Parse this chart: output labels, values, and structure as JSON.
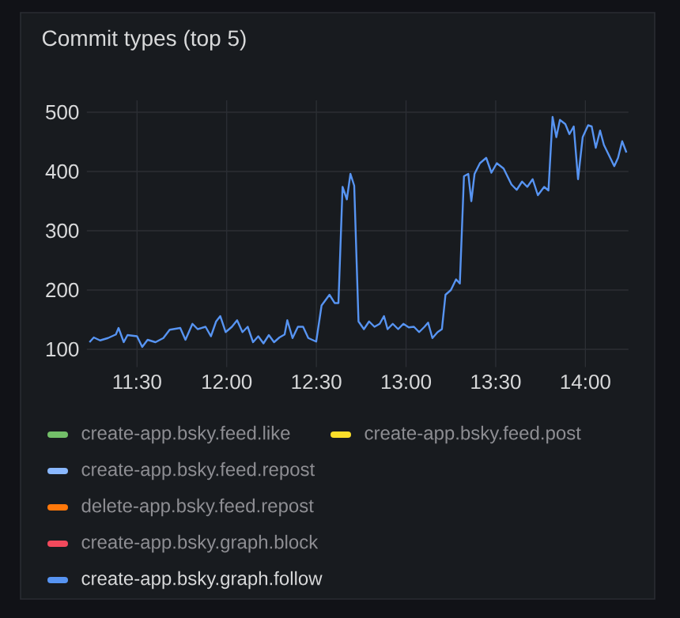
{
  "chart_data": {
    "type": "line",
    "title": "Commit types (top 5)",
    "x": [
      11.235,
      11.259,
      11.294,
      11.338,
      11.382,
      11.397,
      11.426,
      11.447,
      11.5,
      11.529,
      11.559,
      11.603,
      11.647,
      11.682,
      11.741,
      11.77,
      11.809,
      11.838,
      11.882,
      11.912,
      11.941,
      11.964,
      11.994,
      12.029,
      12.058,
      12.088,
      12.117,
      12.147,
      12.176,
      12.205,
      12.235,
      12.264,
      12.294,
      12.323,
      12.338,
      12.367,
      12.397,
      12.426,
      12.455,
      12.499,
      12.529,
      12.573,
      12.602,
      12.623,
      12.646,
      12.67,
      12.69,
      12.711,
      12.735,
      12.765,
      12.794,
      12.824,
      12.853,
      12.877,
      12.897,
      12.926,
      12.956,
      12.985,
      13.015,
      13.044,
      13.073,
      13.103,
      13.123,
      13.147,
      13.176,
      13.2,
      13.22,
      13.25,
      13.279,
      13.3,
      13.323,
      13.347,
      13.364,
      13.382,
      13.412,
      13.447,
      13.476,
      13.506,
      13.544,
      13.588,
      13.617,
      13.647,
      13.676,
      13.706,
      13.735,
      13.77,
      13.794,
      13.817,
      13.838,
      13.858,
      13.888,
      13.911,
      13.935,
      13.959,
      13.985,
      14.015,
      14.035,
      14.058,
      14.082,
      14.103,
      14.132,
      14.161,
      14.182,
      14.205,
      14.229
    ],
    "series": [
      {
        "name": "create-app.bsky.feed.like",
        "color": "#73bf69",
        "values": [
          null,
          null,
          null,
          null,
          null,
          null,
          null,
          null,
          null,
          null,
          null,
          null,
          null,
          null,
          null,
          null,
          null,
          null,
          null,
          null,
          null,
          null,
          null,
          null,
          null,
          null,
          null,
          null,
          null,
          null,
          null,
          null,
          null,
          null,
          null,
          null,
          null,
          null,
          null,
          null,
          null,
          null,
          null,
          null,
          null,
          null,
          null,
          null,
          null,
          null,
          null,
          null,
          null,
          null,
          null,
          null,
          null,
          null,
          null,
          null,
          null,
          null,
          null,
          null,
          null,
          null,
          null,
          null,
          null,
          null,
          null,
          null,
          null,
          null,
          null,
          null,
          null,
          null,
          null,
          null,
          null,
          null,
          null,
          null,
          null,
          null,
          null,
          null,
          null,
          null,
          null,
          null,
          null,
          null,
          null,
          null,
          null,
          null,
          null,
          null,
          null,
          null,
          null,
          null,
          null
        ]
      },
      {
        "name": "create-app.bsky.feed.post",
        "color": "#fade2a",
        "values": [
          null,
          null,
          null,
          null,
          null,
          null,
          null,
          null,
          null,
          null,
          null,
          null,
          null,
          null,
          null,
          null,
          null,
          null,
          null,
          null,
          null,
          null,
          null,
          null,
          null,
          null,
          null,
          null,
          null,
          null,
          null,
          null,
          null,
          null,
          null,
          null,
          null,
          null,
          null,
          null,
          null,
          null,
          null,
          null,
          null,
          null,
          null,
          null,
          null,
          null,
          null,
          null,
          null,
          null,
          null,
          null,
          null,
          null,
          null,
          null,
          null,
          null,
          null,
          null,
          null,
          null,
          null,
          null,
          null,
          null,
          null,
          null,
          null,
          null,
          null,
          null,
          null,
          null,
          null,
          null,
          null,
          null,
          null,
          null,
          null,
          null,
          null,
          null,
          null,
          null,
          null,
          null,
          null,
          null,
          null,
          null,
          null,
          null,
          null,
          null,
          null,
          null,
          null,
          null,
          null
        ]
      },
      {
        "name": "create-app.bsky.feed.repost",
        "color": "#8ab8ff",
        "values": [
          null,
          null,
          null,
          null,
          null,
          null,
          null,
          null,
          null,
          null,
          null,
          null,
          null,
          null,
          null,
          null,
          null,
          null,
          null,
          null,
          null,
          null,
          null,
          null,
          null,
          null,
          null,
          null,
          null,
          null,
          null,
          null,
          null,
          null,
          null,
          null,
          null,
          null,
          null,
          null,
          null,
          null,
          null,
          null,
          null,
          null,
          null,
          null,
          null,
          null,
          null,
          null,
          null,
          null,
          null,
          null,
          null,
          null,
          null,
          null,
          null,
          null,
          null,
          null,
          null,
          null,
          null,
          null,
          null,
          null,
          null,
          null,
          null,
          null,
          null,
          null,
          null,
          null,
          null,
          null,
          null,
          null,
          null,
          null,
          null,
          null,
          null,
          null,
          null,
          null,
          null,
          null,
          null,
          null,
          null,
          null,
          null,
          null,
          null,
          null,
          null,
          null,
          null,
          null,
          null
        ]
      },
      {
        "name": "delete-app.bsky.feed.repost",
        "color": "#ff780a",
        "values": [
          null,
          null,
          null,
          null,
          null,
          null,
          null,
          null,
          null,
          null,
          null,
          null,
          null,
          null,
          null,
          null,
          null,
          null,
          null,
          null,
          null,
          null,
          null,
          null,
          null,
          null,
          null,
          null,
          null,
          null,
          null,
          null,
          null,
          null,
          null,
          null,
          null,
          null,
          null,
          null,
          null,
          null,
          null,
          null,
          null,
          null,
          null,
          null,
          null,
          null,
          null,
          null,
          null,
          null,
          null,
          null,
          null,
          null,
          null,
          null,
          null,
          null,
          null,
          null,
          null,
          null,
          null,
          null,
          null,
          null,
          null,
          null,
          null,
          null,
          null,
          null,
          null,
          null,
          null,
          null,
          null,
          null,
          null,
          null,
          null,
          null,
          null,
          null,
          null,
          null,
          null,
          null,
          null,
          null,
          null,
          null,
          null,
          null,
          null,
          null,
          null,
          null,
          null,
          null,
          null
        ]
      },
      {
        "name": "create-app.bsky.graph.block",
        "color": "#f2495c",
        "values": [
          null,
          null,
          null,
          null,
          null,
          null,
          null,
          null,
          null,
          null,
          null,
          null,
          null,
          null,
          null,
          null,
          null,
          null,
          null,
          null,
          null,
          null,
          null,
          null,
          null,
          null,
          null,
          null,
          null,
          null,
          null,
          null,
          null,
          null,
          null,
          null,
          null,
          null,
          null,
          null,
          null,
          null,
          null,
          null,
          null,
          null,
          null,
          null,
          null,
          null,
          null,
          null,
          null,
          null,
          null,
          null,
          null,
          null,
          null,
          null,
          null,
          null,
          null,
          null,
          null,
          null,
          null,
          null,
          null,
          null,
          null,
          null,
          null,
          null,
          null,
          null,
          null,
          null,
          null,
          null,
          null,
          null,
          null,
          null,
          null,
          null,
          null,
          null,
          null,
          null,
          null,
          null,
          null,
          null,
          null,
          null,
          null,
          null,
          null,
          null,
          null,
          null,
          null,
          null,
          null
        ]
      },
      {
        "name": "create-app.bsky.graph.follow",
        "color": "#5794f2",
        "values": [
          112,
          120,
          115,
          119,
          125,
          136,
          112,
          124,
          122,
          104,
          116,
          112,
          119,
          133,
          136,
          116,
          143,
          134,
          138,
          122,
          147,
          156,
          129,
          138,
          149,
          129,
          138,
          112,
          122,
          110,
          124,
          112,
          120,
          125,
          149,
          119,
          138,
          138,
          119,
          113,
          174,
          192,
          178,
          178,
          374,
          353,
          396,
          376,
          147,
          134,
          147,
          138,
          143,
          156,
          134,
          143,
          134,
          143,
          137,
          138,
          129,
          138,
          145,
          119,
          129,
          134,
          192,
          200,
          218,
          211,
          392,
          396,
          350,
          396,
          414,
          423,
          398,
          414,
          405,
          378,
          369,
          383,
          374,
          387,
          360,
          374,
          368,
          492,
          458,
          487,
          480,
          463,
          476,
          387,
          458,
          478,
          476,
          440,
          469,
          445,
          427,
          409,
          423,
          451,
          432
        ]
      }
    ],
    "xlim": [
      11.22,
      14.24
    ],
    "xticks": [
      {
        "value": 11.5,
        "label": "11:30"
      },
      {
        "value": 12,
        "label": "12:00"
      },
      {
        "value": 12.5,
        "label": "12:30"
      },
      {
        "value": 13,
        "label": "13:00"
      },
      {
        "value": 13.5,
        "label": "13:30"
      },
      {
        "value": 14,
        "label": "14:00"
      }
    ],
    "ylim": [
      70,
      520
    ],
    "yticks": [
      100,
      200,
      300,
      400,
      500
    ],
    "grid": true,
    "legend": "bottom"
  }
}
